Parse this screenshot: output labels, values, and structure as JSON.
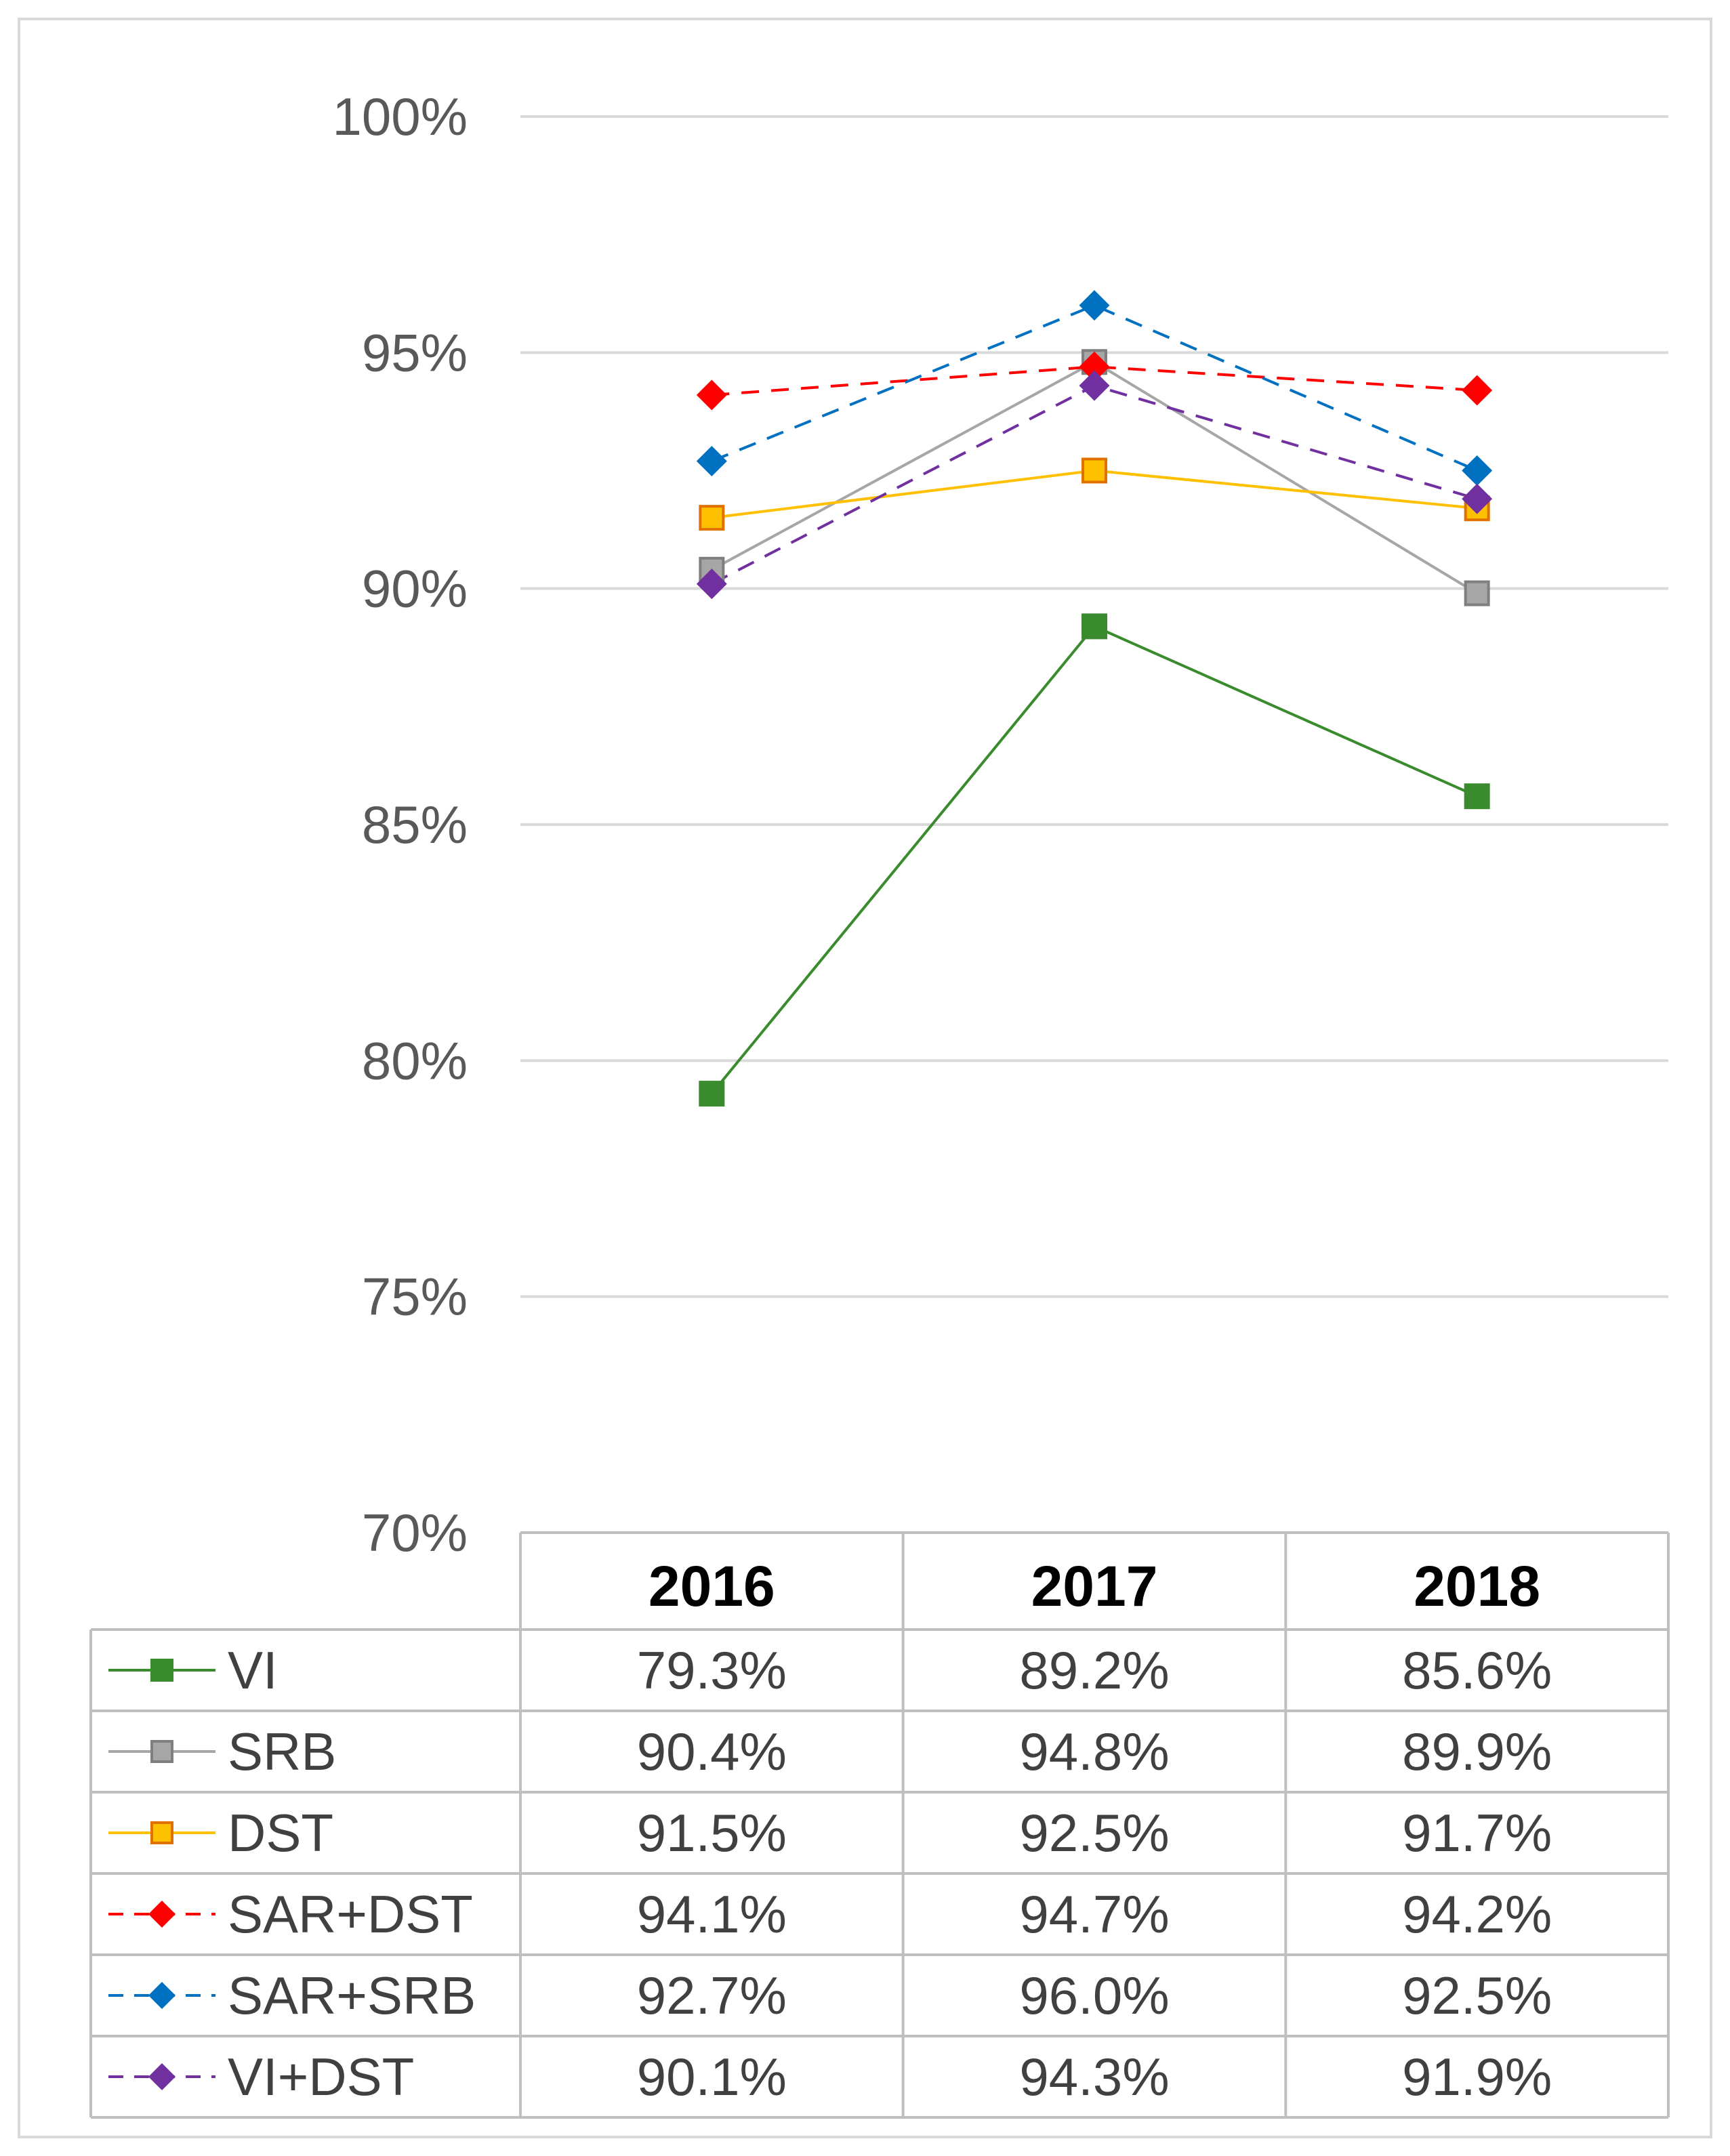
{
  "chart_data": {
    "type": "line",
    "title": "",
    "xlabel": "",
    "ylabel": "",
    "categories": [
      "2016",
      "2017",
      "2018"
    ],
    "ylim": [
      0.7,
      1.0
    ],
    "yticks": [
      0.7,
      0.75,
      0.8,
      0.85,
      0.9,
      0.95,
      1.0
    ],
    "ytick_labels": [
      "70%",
      "75%",
      "80%",
      "85%",
      "90%",
      "95%",
      "100%"
    ],
    "grid": true,
    "legend_position": "data-table",
    "series": [
      {
        "name": "VI",
        "values": [
          0.793,
          0.892,
          0.856
        ],
        "labels": [
          "79.3%",
          "89.2%",
          "85.6%"
        ],
        "color": "#3a8a2e",
        "marker": "square",
        "dash": "solid"
      },
      {
        "name": "SRB",
        "values": [
          0.904,
          0.948,
          0.899
        ],
        "labels": [
          "90.4%",
          "94.8%",
          "89.9%"
        ],
        "color": "#a6a6a6",
        "marker": "square",
        "dash": "solid"
      },
      {
        "name": "DST",
        "values": [
          0.915,
          0.925,
          0.917
        ],
        "labels": [
          "91.5%",
          "92.5%",
          "91.7%"
        ],
        "color": "#ffc000",
        "marker": "square",
        "dash": "solid"
      },
      {
        "name": "SAR+DST",
        "values": [
          0.941,
          0.947,
          0.942
        ],
        "labels": [
          "94.1%",
          "94.7%",
          "94.2%"
        ],
        "color": "#ff0000",
        "marker": "diamond",
        "dash": "dashed"
      },
      {
        "name": "SAR+SRB",
        "values": [
          0.927,
          0.96,
          0.925
        ],
        "labels": [
          "92.7%",
          "96.0%",
          "92.5%"
        ],
        "color": "#0070c0",
        "marker": "diamond",
        "dash": "dashed"
      },
      {
        "name": "VI+DST",
        "values": [
          0.901,
          0.943,
          0.919
        ],
        "labels": [
          "90.1%",
          "94.3%",
          "91.9%"
        ],
        "color": "#7030a0",
        "marker": "diamond",
        "dash": "dashed"
      }
    ]
  }
}
